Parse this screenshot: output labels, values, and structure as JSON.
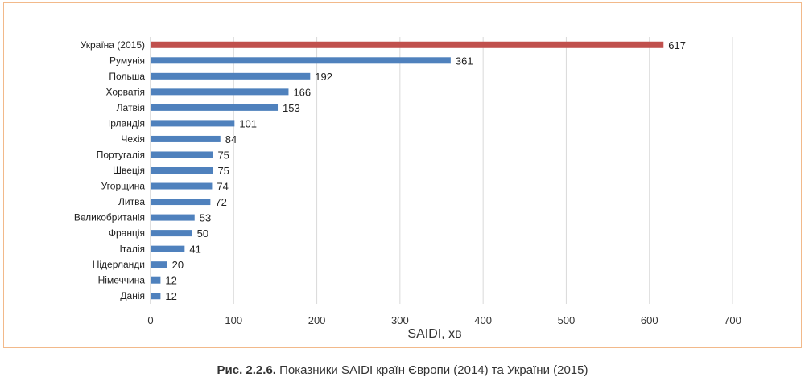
{
  "figure": {
    "caption_bold": "Рис. 2.2.6.",
    "caption_text": " Показники SAIDI країн Європи (2014) та України (2015)"
  },
  "chart_data": {
    "type": "bar",
    "orientation": "horizontal",
    "title": "",
    "xlabel": "SAIDI, хв",
    "ylabel": "",
    "xlim": [
      0,
      700
    ],
    "xticks": [
      0,
      100,
      200,
      300,
      400,
      500,
      600,
      700
    ],
    "grid": true,
    "legend": "none",
    "categories": [
      "Україна (2015)",
      "Румунія",
      "Польша",
      "Хорватія",
      "Латвія",
      "Ірландія",
      "Чехія",
      "Португалія",
      "Швеція",
      "Угорщина",
      "Литва",
      "Великобританія",
      "Франція",
      "Італія",
      "Нідерланди",
      "Німеччина",
      "Данія"
    ],
    "values": [
      617,
      361,
      192,
      166,
      153,
      101,
      84,
      75,
      75,
      74,
      72,
      53,
      50,
      41,
      20,
      12,
      12
    ],
    "colors": {
      "highlight": "#c0504d",
      "default": "#4f81bd",
      "grid": "#d9d9d9",
      "frame": "#f2b98a"
    },
    "highlight_index": 0
  }
}
